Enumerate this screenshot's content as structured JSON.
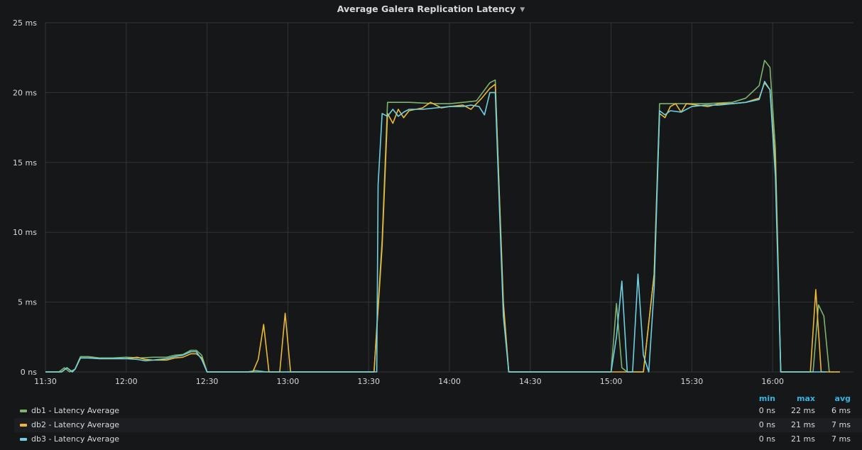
{
  "panel": {
    "title": "Average Galera Replication Latency",
    "title_menu_icon": "caret-down-icon"
  },
  "colors": {
    "background": "#161719",
    "grid": "#333438",
    "text": "#d8d9da",
    "legend_header": "#33b5e5",
    "db1": "#7eb26d",
    "db2": "#eab839",
    "db3": "#6ed0e0"
  },
  "legend": {
    "columns": [
      "min",
      "max",
      "avg"
    ],
    "rows": [
      {
        "name": "db1 - Latency Average",
        "color": "#7eb26d",
        "min": "0 ns",
        "max": "22 ms",
        "avg": "6 ms"
      },
      {
        "name": "db2 - Latency Average",
        "color": "#eab839",
        "min": "0 ns",
        "max": "21 ms",
        "avg": "7 ms"
      },
      {
        "name": "db3 - Latency Average",
        "color": "#6ed0e0",
        "min": "0 ns",
        "max": "21 ms",
        "avg": "7 ms"
      }
    ]
  },
  "chart_data": {
    "type": "line",
    "title": "Average Galera Replication Latency",
    "xlabel": "",
    "ylabel": "",
    "x_unit": "HH:MM",
    "xlim": [
      "11:30",
      "16:30"
    ],
    "ylim": [
      0,
      25
    ],
    "x_ticks": [
      "11:30",
      "12:00",
      "12:30",
      "13:00",
      "13:30",
      "14:00",
      "14:30",
      "15:00",
      "15:30",
      "16:00"
    ],
    "y_ticks": [
      {
        "value": 0,
        "label": "0 ns"
      },
      {
        "value": 5,
        "label": "5 ms"
      },
      {
        "value": 10,
        "label": "10 ms"
      },
      {
        "value": 15,
        "label": "15 ms"
      },
      {
        "value": 20,
        "label": "20 ms"
      },
      {
        "value": 25,
        "label": "25 ms"
      }
    ],
    "grid": true,
    "legend_position": "bottom",
    "series": [
      {
        "name": "db1 - Latency Average",
        "color": "#7eb26d",
        "points": [
          [
            "11:30",
            0
          ],
          [
            "11:35",
            0
          ],
          [
            "11:37",
            0.3
          ],
          [
            "11:39",
            0
          ],
          [
            "11:41",
            0.2
          ],
          [
            "11:43",
            1.1
          ],
          [
            "11:46",
            1.1
          ],
          [
            "11:50",
            1.0
          ],
          [
            "11:55",
            1.0
          ],
          [
            "12:00",
            1.05
          ],
          [
            "12:05",
            1.0
          ],
          [
            "12:10",
            1.05
          ],
          [
            "12:15",
            1.05
          ],
          [
            "12:18",
            1.2
          ],
          [
            "12:21",
            1.25
          ],
          [
            "12:24",
            1.55
          ],
          [
            "12:26",
            1.55
          ],
          [
            "12:28",
            1.2
          ],
          [
            "12:30",
            0
          ],
          [
            "12:40",
            0
          ],
          [
            "12:45",
            0
          ],
          [
            "12:48",
            0.1
          ],
          [
            "12:52",
            0
          ],
          [
            "13:00",
            0
          ],
          [
            "13:20",
            0
          ],
          [
            "13:32",
            0
          ],
          [
            "13:35",
            9.5
          ],
          [
            "13:37",
            19.3
          ],
          [
            "13:45",
            19.3
          ],
          [
            "13:55",
            19.2
          ],
          [
            "14:00",
            19.2
          ],
          [
            "14:05",
            19.3
          ],
          [
            "14:10",
            19.4
          ],
          [
            "14:15",
            20.7
          ],
          [
            "14:17",
            20.9
          ],
          [
            "14:20",
            4.5
          ],
          [
            "14:22",
            0
          ],
          [
            "14:30",
            0
          ],
          [
            "14:45",
            0
          ],
          [
            "14:58",
            0
          ],
          [
            "15:00",
            0
          ],
          [
            "15:02",
            4.9
          ],
          [
            "15:04",
            0.3
          ],
          [
            "15:06",
            0
          ],
          [
            "15:12",
            0
          ],
          [
            "15:16",
            7.0
          ],
          [
            "15:18",
            19.2
          ],
          [
            "15:25",
            19.2
          ],
          [
            "15:35",
            19.2
          ],
          [
            "15:45",
            19.3
          ],
          [
            "15:50",
            19.6
          ],
          [
            "15:55",
            20.5
          ],
          [
            "15:57",
            22.3
          ],
          [
            "15:59",
            21.8
          ],
          [
            "16:01",
            16.0
          ],
          [
            "16:03",
            0
          ],
          [
            "16:15",
            0
          ],
          [
            "16:17",
            4.8
          ],
          [
            "16:19",
            4.0
          ],
          [
            "16:21",
            0
          ],
          [
            "16:25",
            0
          ]
        ]
      },
      {
        "name": "db2 - Latency Average",
        "color": "#eab839",
        "points": [
          [
            "11:30",
            0
          ],
          [
            "11:36",
            0
          ],
          [
            "11:38",
            0.3
          ],
          [
            "11:40",
            0
          ],
          [
            "11:41",
            0.2
          ],
          [
            "11:43",
            1.0
          ],
          [
            "11:46",
            1.0
          ],
          [
            "11:50",
            0.95
          ],
          [
            "11:55",
            0.95
          ],
          [
            "12:00",
            0.95
          ],
          [
            "12:04",
            1.05
          ],
          [
            "12:07",
            0.9
          ],
          [
            "12:10",
            0.85
          ],
          [
            "12:15",
            0.85
          ],
          [
            "12:18",
            1.0
          ],
          [
            "12:21",
            1.05
          ],
          [
            "12:24",
            1.3
          ],
          [
            "12:26",
            1.3
          ],
          [
            "12:28",
            1.0
          ],
          [
            "12:30",
            0
          ],
          [
            "12:40",
            0
          ],
          [
            "12:47",
            0
          ],
          [
            "12:49",
            0.9
          ],
          [
            "12:51",
            3.4
          ],
          [
            "12:53",
            0
          ],
          [
            "12:57",
            0
          ],
          [
            "12:59",
            4.2
          ],
          [
            "13:01",
            0
          ],
          [
            "13:20",
            0
          ],
          [
            "13:32",
            0
          ],
          [
            "13:35",
            9.0
          ],
          [
            "13:37",
            18.5
          ],
          [
            "13:39",
            17.8
          ],
          [
            "13:41",
            18.8
          ],
          [
            "13:43",
            18.2
          ],
          [
            "13:45",
            18.7
          ],
          [
            "13:50",
            18.9
          ],
          [
            "13:53",
            19.3
          ],
          [
            "13:57",
            18.9
          ],
          [
            "14:00",
            19.0
          ],
          [
            "14:05",
            19.1
          ],
          [
            "14:08",
            18.8
          ],
          [
            "14:12",
            19.6
          ],
          [
            "14:15",
            20.3
          ],
          [
            "14:17",
            20.6
          ],
          [
            "14:20",
            5.0
          ],
          [
            "14:22",
            0
          ],
          [
            "14:30",
            0
          ],
          [
            "15:00",
            0
          ],
          [
            "15:12",
            0
          ],
          [
            "15:16",
            7.0
          ],
          [
            "15:18",
            18.5
          ],
          [
            "15:20",
            18.2
          ],
          [
            "15:22",
            19.0
          ],
          [
            "15:24",
            19.2
          ],
          [
            "15:26",
            18.6
          ],
          [
            "15:28",
            19.2
          ],
          [
            "15:32",
            19.1
          ],
          [
            "15:36",
            19.0
          ],
          [
            "15:40",
            19.2
          ],
          [
            "15:45",
            19.2
          ],
          [
            "15:50",
            19.3
          ],
          [
            "15:55",
            19.6
          ],
          [
            "15:57",
            20.7
          ],
          [
            "15:59",
            20.2
          ],
          [
            "16:01",
            15.0
          ],
          [
            "16:03",
            0
          ],
          [
            "16:14",
            0
          ],
          [
            "16:16",
            5.9
          ],
          [
            "16:18",
            0
          ],
          [
            "16:25",
            0
          ]
        ]
      },
      {
        "name": "db3 - Latency Average",
        "color": "#6ed0e0",
        "points": [
          [
            "11:30",
            0
          ],
          [
            "11:36",
            0
          ],
          [
            "11:38",
            0.3
          ],
          [
            "11:40",
            0
          ],
          [
            "11:41",
            0.2
          ],
          [
            "11:43",
            1.0
          ],
          [
            "11:46",
            1.0
          ],
          [
            "11:50",
            0.95
          ],
          [
            "11:55",
            0.95
          ],
          [
            "12:00",
            0.95
          ],
          [
            "12:04",
            0.9
          ],
          [
            "12:07",
            0.8
          ],
          [
            "12:10",
            0.85
          ],
          [
            "12:15",
            0.95
          ],
          [
            "12:18",
            1.1
          ],
          [
            "12:21",
            1.2
          ],
          [
            "12:24",
            1.45
          ],
          [
            "12:26",
            1.45
          ],
          [
            "12:28",
            0.9
          ],
          [
            "12:30",
            0
          ],
          [
            "12:45",
            0
          ],
          [
            "13:00",
            0
          ],
          [
            "13:20",
            0
          ],
          [
            "13:33",
            0
          ],
          [
            "13:33.5",
            13.4
          ],
          [
            "13:35",
            18.5
          ],
          [
            "13:37",
            18.3
          ],
          [
            "13:39",
            18.8
          ],
          [
            "13:41",
            18.3
          ],
          [
            "13:43",
            18.6
          ],
          [
            "13:45",
            18.8
          ],
          [
            "13:50",
            18.8
          ],
          [
            "13:55",
            18.9
          ],
          [
            "14:00",
            19.0
          ],
          [
            "14:05",
            19.0
          ],
          [
            "14:08",
            19.1
          ],
          [
            "14:11",
            19.0
          ],
          [
            "14:13",
            18.4
          ],
          [
            "14:15",
            20.0
          ],
          [
            "14:17",
            20.0
          ],
          [
            "14:20",
            4.0
          ],
          [
            "14:22",
            0
          ],
          [
            "14:30",
            0
          ],
          [
            "14:58",
            0
          ],
          [
            "15:00",
            0
          ],
          [
            "15:02",
            2.5
          ],
          [
            "15:04",
            6.5
          ],
          [
            "15:06",
            0
          ],
          [
            "15:08",
            0
          ],
          [
            "15:10",
            7.0
          ],
          [
            "15:12",
            1.2
          ],
          [
            "15:14",
            0
          ],
          [
            "15:16",
            6.0
          ],
          [
            "15:18",
            18.7
          ],
          [
            "15:20",
            18.4
          ],
          [
            "15:22",
            18.7
          ],
          [
            "15:26",
            18.6
          ],
          [
            "15:30",
            19.0
          ],
          [
            "15:35",
            19.1
          ],
          [
            "15:40",
            19.1
          ],
          [
            "15:45",
            19.2
          ],
          [
            "15:50",
            19.3
          ],
          [
            "15:55",
            19.5
          ],
          [
            "15:57",
            20.8
          ],
          [
            "15:59",
            20.2
          ],
          [
            "16:01",
            14.0
          ],
          [
            "16:03",
            0
          ],
          [
            "16:15",
            0
          ],
          [
            "16:20",
            0
          ]
        ]
      }
    ]
  }
}
